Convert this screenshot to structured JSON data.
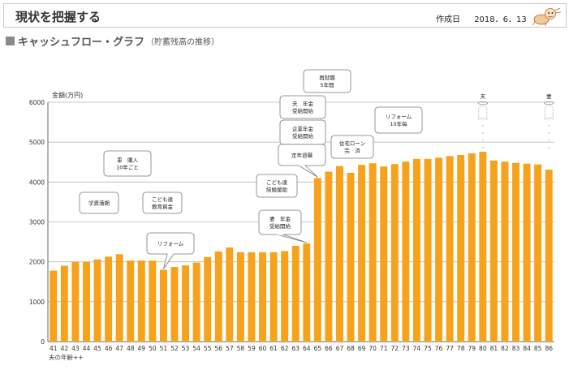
{
  "header": {
    "title": "現状を把握する",
    "date_label": "作成日",
    "date_value": "2018．6．13"
  },
  "section": {
    "title": "キャッシュフロー・グラフ",
    "subtitle": "（貯蓄残高の推移）"
  },
  "colors": {
    "bar": "#F7A21B",
    "grid": "#b9b9b9",
    "callout_border": "#7a7a7a"
  },
  "icons": {
    "mascot": "cartoon-character-icon",
    "husband": "ghost-icon",
    "wife": "ghost-icon"
  },
  "chart_data": {
    "type": "bar",
    "ylabel": "金額(万円)",
    "xlabel": "夫の年齢++",
    "ylim": [
      0,
      6000
    ],
    "yticks": [
      0,
      1000,
      2000,
      3000,
      4000,
      5000,
      6000
    ],
    "grid": true,
    "categories": [
      "41",
      "42",
      "43",
      "44",
      "45",
      "46",
      "47",
      "48",
      "49",
      "50",
      "51",
      "52",
      "53",
      "54",
      "55",
      "56",
      "57",
      "58",
      "59",
      "60",
      "61",
      "62",
      "63",
      "64",
      "65",
      "66",
      "67",
      "68",
      "69",
      "70",
      "71",
      "72",
      "73",
      "74",
      "75",
      "76",
      "77",
      "78",
      "79",
      "80",
      "81",
      "82",
      "83",
      "84",
      "85",
      "86"
    ],
    "values": [
      1780,
      1900,
      2000,
      2000,
      2060,
      2130,
      2190,
      2030,
      2030,
      2030,
      1800,
      1870,
      1910,
      1980,
      2120,
      2260,
      2360,
      2240,
      2240,
      2240,
      2240,
      2270,
      2400,
      2460,
      4100,
      4260,
      4400,
      4230,
      4430,
      4470,
      4390,
      4450,
      4510,
      4580,
      4580,
      4610,
      4650,
      4680,
      4720,
      4760,
      4540,
      4510,
      4480,
      4460,
      4440,
      4310
    ],
    "annotations": [
      {
        "lines": [
          "学資満期"
        ],
        "category": "45"
      },
      {
        "lines": [
          "車　購入",
          "10年ごと"
        ],
        "category": "48"
      },
      {
        "lines": [
          "こども達",
          "教育資金"
        ],
        "category": "51"
      },
      {
        "lines": [
          "リフォーム"
        ],
        "category": "51"
      },
      {
        "lines": [
          "こども達",
          "結婚援助"
        ],
        "category": "64"
      },
      {
        "lines": [
          "妻　年金",
          "受給開始"
        ],
        "category": "64"
      },
      {
        "lines": [
          "夫　年金",
          "受給開始"
        ],
        "category": "65"
      },
      {
        "lines": [
          "企業年金",
          "受給開始"
        ],
        "category": "65"
      },
      {
        "lines": [
          "定年退職"
        ],
        "category": "65"
      },
      {
        "lines": [
          "再就職",
          "5年間"
        ],
        "category": "65"
      },
      {
        "lines": [
          "住宅ローン",
          "完　済"
        ],
        "category": "68"
      },
      {
        "lines": [
          "リフォーム",
          "10年毎"
        ],
        "category": "73"
      }
    ],
    "markers": [
      {
        "label": "夫",
        "category": "80"
      },
      {
        "label": "妻",
        "category": "86"
      }
    ]
  }
}
